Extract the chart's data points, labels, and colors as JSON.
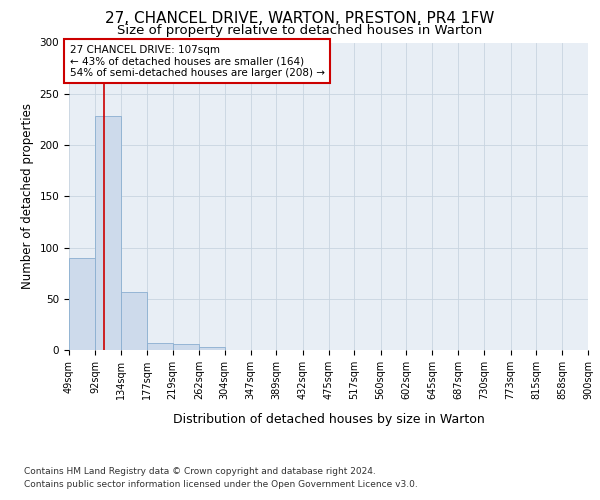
{
  "title1": "27, CHANCEL DRIVE, WARTON, PRESTON, PR4 1FW",
  "title2": "Size of property relative to detached houses in Warton",
  "xlabel": "Distribution of detached houses by size in Warton",
  "ylabel": "Number of detached properties",
  "footnote1": "Contains HM Land Registry data © Crown copyright and database right 2024.",
  "footnote2": "Contains public sector information licensed under the Open Government Licence v3.0.",
  "bin_edges": [
    49,
    92,
    134,
    177,
    219,
    262,
    304,
    347,
    389,
    432,
    475,
    517,
    560,
    602,
    645,
    687,
    730,
    773,
    815,
    858,
    900
  ],
  "bar_heights": [
    90,
    228,
    57,
    7,
    6,
    3,
    0,
    0,
    0,
    0,
    0,
    0,
    0,
    0,
    0,
    0,
    0,
    0,
    0,
    0
  ],
  "bar_color": "#cddaeb",
  "bar_edgecolor": "#8aaed0",
  "property_size": 107,
  "vline_color": "#cc0000",
  "annotation_line1": "27 CHANCEL DRIVE: 107sqm",
  "annotation_line2": "← 43% of detached houses are smaller (164)",
  "annotation_line3": "54% of semi-detached houses are larger (208) →",
  "annotation_box_color": "#cc0000",
  "annotation_bg_color": "#ffffff",
  "ylim": [
    0,
    300
  ],
  "yticks": [
    0,
    50,
    100,
    150,
    200,
    250,
    300
  ],
  "grid_color": "#c8d4e0",
  "background_color": "#e8eef5",
  "title1_fontsize": 11,
  "title2_fontsize": 9.5,
  "tick_label_fontsize": 7,
  "ylabel_fontsize": 8.5,
  "xlabel_fontsize": 9,
  "footnote_fontsize": 6.5
}
